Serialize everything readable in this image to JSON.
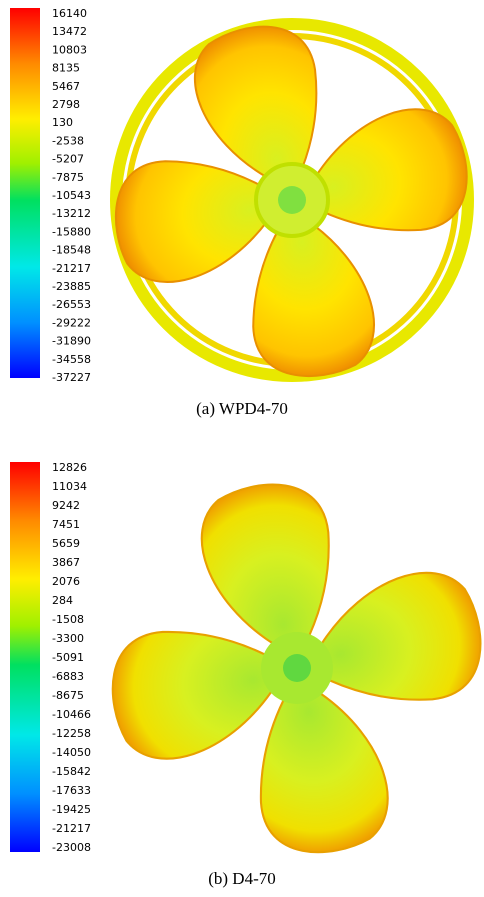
{
  "panels": [
    {
      "colorbar": [
        16140,
        13472,
        10803,
        8135,
        5467,
        2798,
        130,
        -2538,
        -5207,
        -7875,
        -10543,
        -13212,
        -15880,
        -18548,
        -21217,
        -23885,
        -26553,
        -29222,
        -31890,
        -34558,
        -37227
      ],
      "caption": "(a) WPD4-70"
    },
    {
      "colorbar": [
        12826,
        11034,
        9242,
        7451,
        5659,
        3867,
        2076,
        284,
        -1508,
        -3300,
        -5091,
        -6883,
        -8675,
        -10466,
        -12258,
        -14050,
        -15842,
        -17633,
        -19425,
        -21217,
        -23008
      ],
      "caption": "(b) D4-70"
    }
  ]
}
